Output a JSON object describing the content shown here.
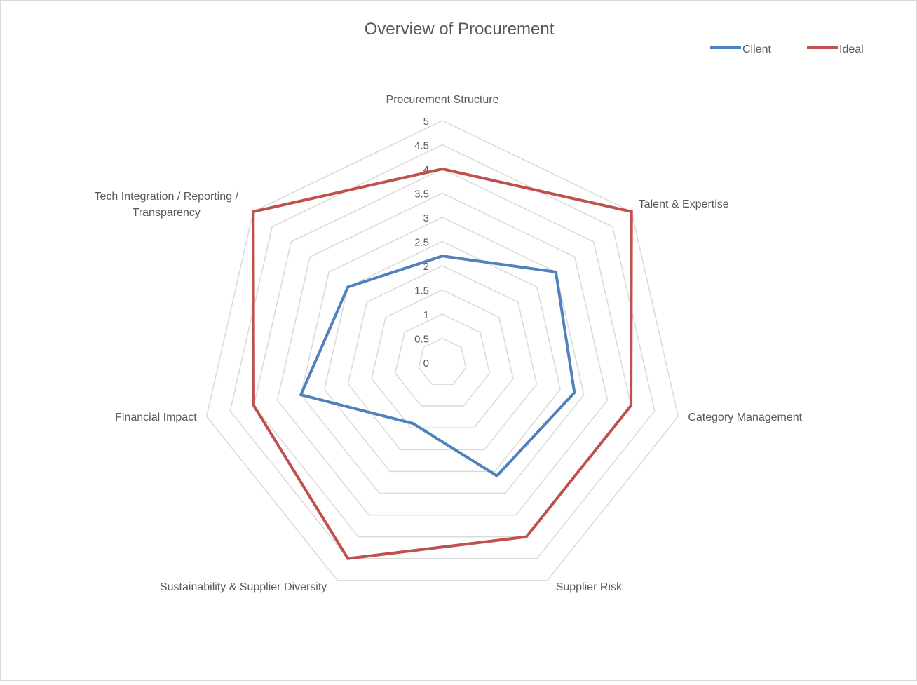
{
  "chart_data": {
    "type": "radar",
    "title": "Overview of Procurement",
    "categories": [
      "Procurement Structure",
      "Talent & Expertise",
      "Category Management",
      "Supplier Risk",
      "Sustainability & Supplier Diversity",
      "Financial Impact",
      "Tech Integration / Reporting / Transparency"
    ],
    "series": [
      {
        "name": "Client",
        "values": [
          2.2,
          3.0,
          2.8,
          2.6,
          1.4,
          3.0,
          2.5
        ],
        "color": "#4f81bd"
      },
      {
        "name": "Ideal",
        "values": [
          4.0,
          5.0,
          4.0,
          4.0,
          4.5,
          4.0,
          5.0
        ],
        "color": "#c0504d"
      }
    ],
    "rlim": [
      0,
      5
    ],
    "ticks": [
      "0",
      "0.5",
      "1",
      "1.5",
      "2",
      "2.5",
      "3",
      "3.5",
      "4",
      "4.5",
      "5"
    ],
    "grid": true,
    "gridColor": "#d9d9d9",
    "legend": "top-right"
  }
}
